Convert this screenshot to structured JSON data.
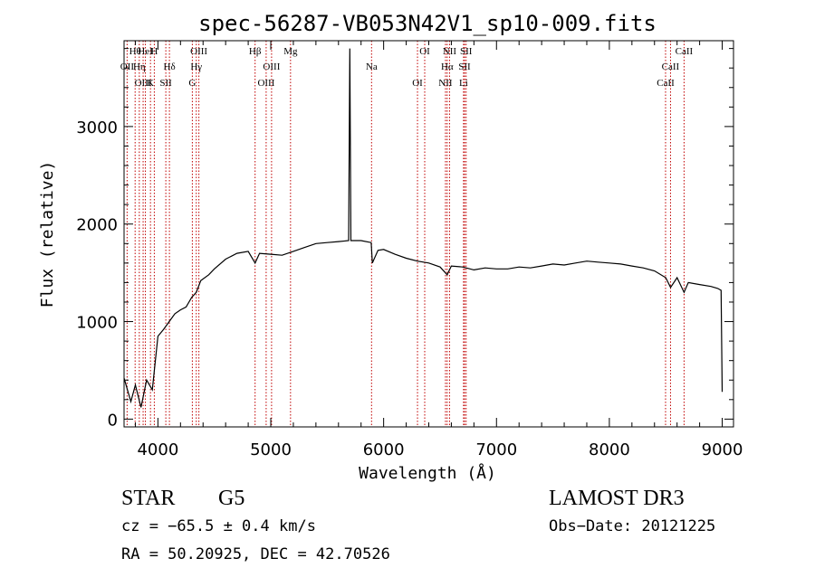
{
  "chart_data": {
    "type": "line",
    "title": "spec-56287-VB053N42V1_sp10-009.fits",
    "xlabel": "Wavelength (Å)",
    "ylabel": "Flux (relative)",
    "xlim": [
      3700,
      9100
    ],
    "ylim": [
      -80,
      3880
    ],
    "xticks": [
      4000,
      5000,
      6000,
      7000,
      8000,
      9000
    ],
    "yticks": [
      0,
      1000,
      2000,
      3000
    ],
    "x": [
      3700,
      3760,
      3800,
      3850,
      3900,
      3950,
      4000,
      4050,
      4100,
      4150,
      4200,
      4250,
      4300,
      4340,
      4380,
      4450,
      4500,
      4600,
      4700,
      4800,
      4861,
      4900,
      5000,
      5100,
      5200,
      5300,
      5400,
      5500,
      5600,
      5690,
      5700,
      5710,
      5800,
      5890,
      5900,
      5950,
      6000,
      6100,
      6200,
      6300,
      6400,
      6500,
      6563,
      6600,
      6700,
      6800,
      6900,
      7000,
      7100,
      7200,
      7300,
      7400,
      7500,
      7600,
      7700,
      7800,
      7900,
      8000,
      8100,
      8200,
      8300,
      8400,
      8500,
      8542,
      8600,
      8662,
      8700,
      8800,
      8900,
      8960,
      8990,
      9000
    ],
    "y": [
      420,
      180,
      350,
      120,
      400,
      300,
      850,
      920,
      1000,
      1080,
      1120,
      1150,
      1250,
      1300,
      1420,
      1480,
      1540,
      1640,
      1700,
      1720,
      1600,
      1700,
      1690,
      1680,
      1720,
      1760,
      1800,
      1810,
      1820,
      1830,
      3800,
      1830,
      1830,
      1810,
      1600,
      1730,
      1740,
      1690,
      1650,
      1620,
      1600,
      1560,
      1480,
      1570,
      1560,
      1530,
      1550,
      1540,
      1540,
      1560,
      1550,
      1570,
      1590,
      1580,
      1600,
      1620,
      1610,
      1600,
      1590,
      1570,
      1550,
      1520,
      1450,
      1350,
      1450,
      1300,
      1400,
      1380,
      1360,
      1340,
      1320,
      280
    ],
    "lines": [
      {
        "label": "Hθ",
        "x": 3798
      },
      {
        "label": "OII",
        "x": 3727
      },
      {
        "label": "OIII",
        "x": 3869
      },
      {
        "label": "HeI",
        "x": 3889
      },
      {
        "label": "Hη",
        "x": 3835
      },
      {
        "label": "K",
        "x": 3934
      },
      {
        "label": "H",
        "x": 3968
      },
      {
        "label": "Hδ",
        "x": 4102
      },
      {
        "label": "SII",
        "x": 4070
      },
      {
        "label": "OIII",
        "x": 4363
      },
      {
        "label": "Hγ",
        "x": 4340
      },
      {
        "label": "G",
        "x": 4305
      },
      {
        "label": "Hβ",
        "x": 4861
      },
      {
        "label": "OIII",
        "x": 5007
      },
      {
        "label": "OIII",
        "x": 4959
      },
      {
        "label": "Mg",
        "x": 5175
      },
      {
        "label": "Na",
        "x": 5893
      },
      {
        "label": "OI",
        "x": 6300
      },
      {
        "label": "OI",
        "x": 6364
      },
      {
        "label": "Hα",
        "x": 6563
      },
      {
        "label": "NII",
        "x": 6548
      },
      {
        "label": "NII",
        "x": 6584
      },
      {
        "label": "SII",
        "x": 6717
      },
      {
        "label": "Li",
        "x": 6708
      },
      {
        "label": "SII",
        "x": 6731
      },
      {
        "label": "CaII",
        "x": 8542
      },
      {
        "label": "CaII",
        "x": 8498
      },
      {
        "label": "CaII",
        "x": 8662
      }
    ]
  },
  "info": {
    "class": "STAR",
    "subclass": "G5",
    "survey": "LAMOST DR3",
    "cz": "cz = −65.5 ± 0.4 km/s",
    "obs_date": "Obs−Date: 20121225",
    "radec": "RA =  50.20925, DEC =  42.70526"
  }
}
